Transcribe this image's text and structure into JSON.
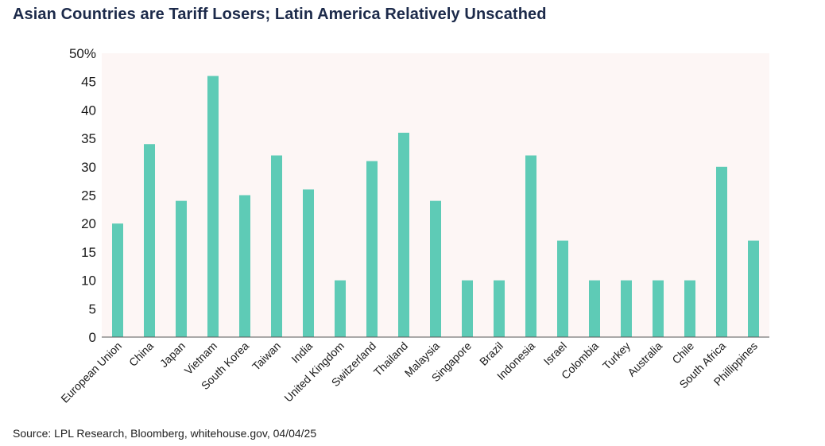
{
  "title": "Asian Countries are Tariff Losers; Latin America Relatively Unscathed",
  "source": "Source: LPL Research, Bloomberg, whitehouse.gov, 04/04/25",
  "chart_data": {
    "type": "bar",
    "categories": [
      "European Union",
      "China",
      "Japan",
      "Vietnam",
      "South Korea",
      "Taiwan",
      "India",
      "United Kingdom",
      "Switzerland",
      "Thailand",
      "Malaysia",
      "Singapore",
      "Brazil",
      "Indonesia",
      "Israel",
      "Colombia",
      "Turkey",
      "Australia",
      "Chile",
      "South Africa",
      "Phillippines"
    ],
    "values": [
      20,
      34,
      24,
      46,
      25,
      32,
      26,
      10,
      31,
      36,
      24,
      10,
      10,
      32,
      17,
      10,
      10,
      10,
      10,
      30,
      17
    ],
    "y_tick_labels": [
      "0",
      "5",
      "10",
      "15",
      "20",
      "25",
      "30",
      "35",
      "40",
      "45",
      "50%"
    ],
    "ylim": [
      0,
      50
    ],
    "grid": false,
    "legend": "none",
    "colors": {
      "bar": "#5ecbb6",
      "plot_background": "#fdf6f5",
      "axis": "#555555"
    }
  }
}
